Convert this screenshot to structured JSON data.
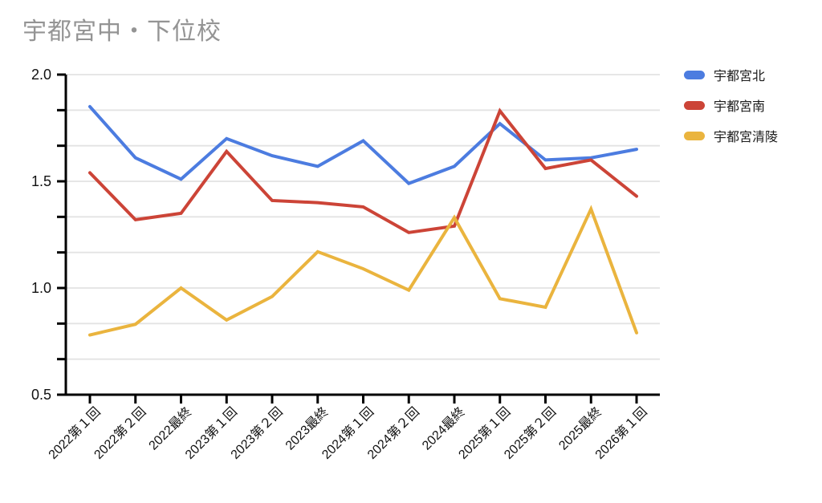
{
  "title": "宇都宮中・下位校",
  "colors": {
    "series_blue": "#4C7CE0",
    "series_red": "#CC4437",
    "series_yellow": "#EAB43E",
    "title_text": "#949494",
    "axis": "#000000",
    "gridline": "#E3E3E3",
    "tick_label": "#111111",
    "background": "#FFFFFF"
  },
  "legend": {
    "position": "right",
    "items": [
      "宇都宮北",
      "宇都宮南",
      "宇都宮清陵"
    ]
  },
  "axis_labels": {
    "y_ticks_shown": [
      "2.0",
      "1.5",
      "1.0",
      "0.5"
    ]
  },
  "chart_data": {
    "type": "line",
    "title": "宇都宮中・下位校",
    "xlabel": "",
    "ylabel": "",
    "categories": [
      "2022第１回",
      "2022第２回",
      "2022最終",
      "2023第１回",
      "2023第２回",
      "2023最終",
      "2024第１回",
      "2024第２回",
      "2024最終",
      "2025第１回",
      "2025第２回",
      "2025最終",
      "2026第１回"
    ],
    "series": [
      {
        "name": "宇都宮北",
        "color": "#4C7CE0",
        "values": [
          1.85,
          1.61,
          1.51,
          1.7,
          1.62,
          1.57,
          1.69,
          1.49,
          1.57,
          1.77,
          1.6,
          1.61,
          1.65
        ]
      },
      {
        "name": "宇都宮南",
        "color": "#CC4437",
        "values": [
          1.54,
          1.32,
          1.35,
          1.64,
          1.41,
          1.4,
          1.38,
          1.26,
          1.29,
          1.83,
          1.56,
          1.6,
          1.43
        ]
      },
      {
        "name": "宇都宮清陵",
        "color": "#EAB43E",
        "values": [
          0.78,
          0.83,
          1.0,
          0.85,
          0.96,
          1.17,
          1.09,
          0.99,
          1.33,
          0.95,
          0.91,
          1.37,
          0.79
        ]
      }
    ],
    "ylim": [
      0.5,
      2.0
    ],
    "yticks": [
      0.5,
      1.0,
      1.5,
      2.0
    ],
    "minor_gridlines_between_majors": 2,
    "grid": true,
    "legend_position": "right"
  }
}
